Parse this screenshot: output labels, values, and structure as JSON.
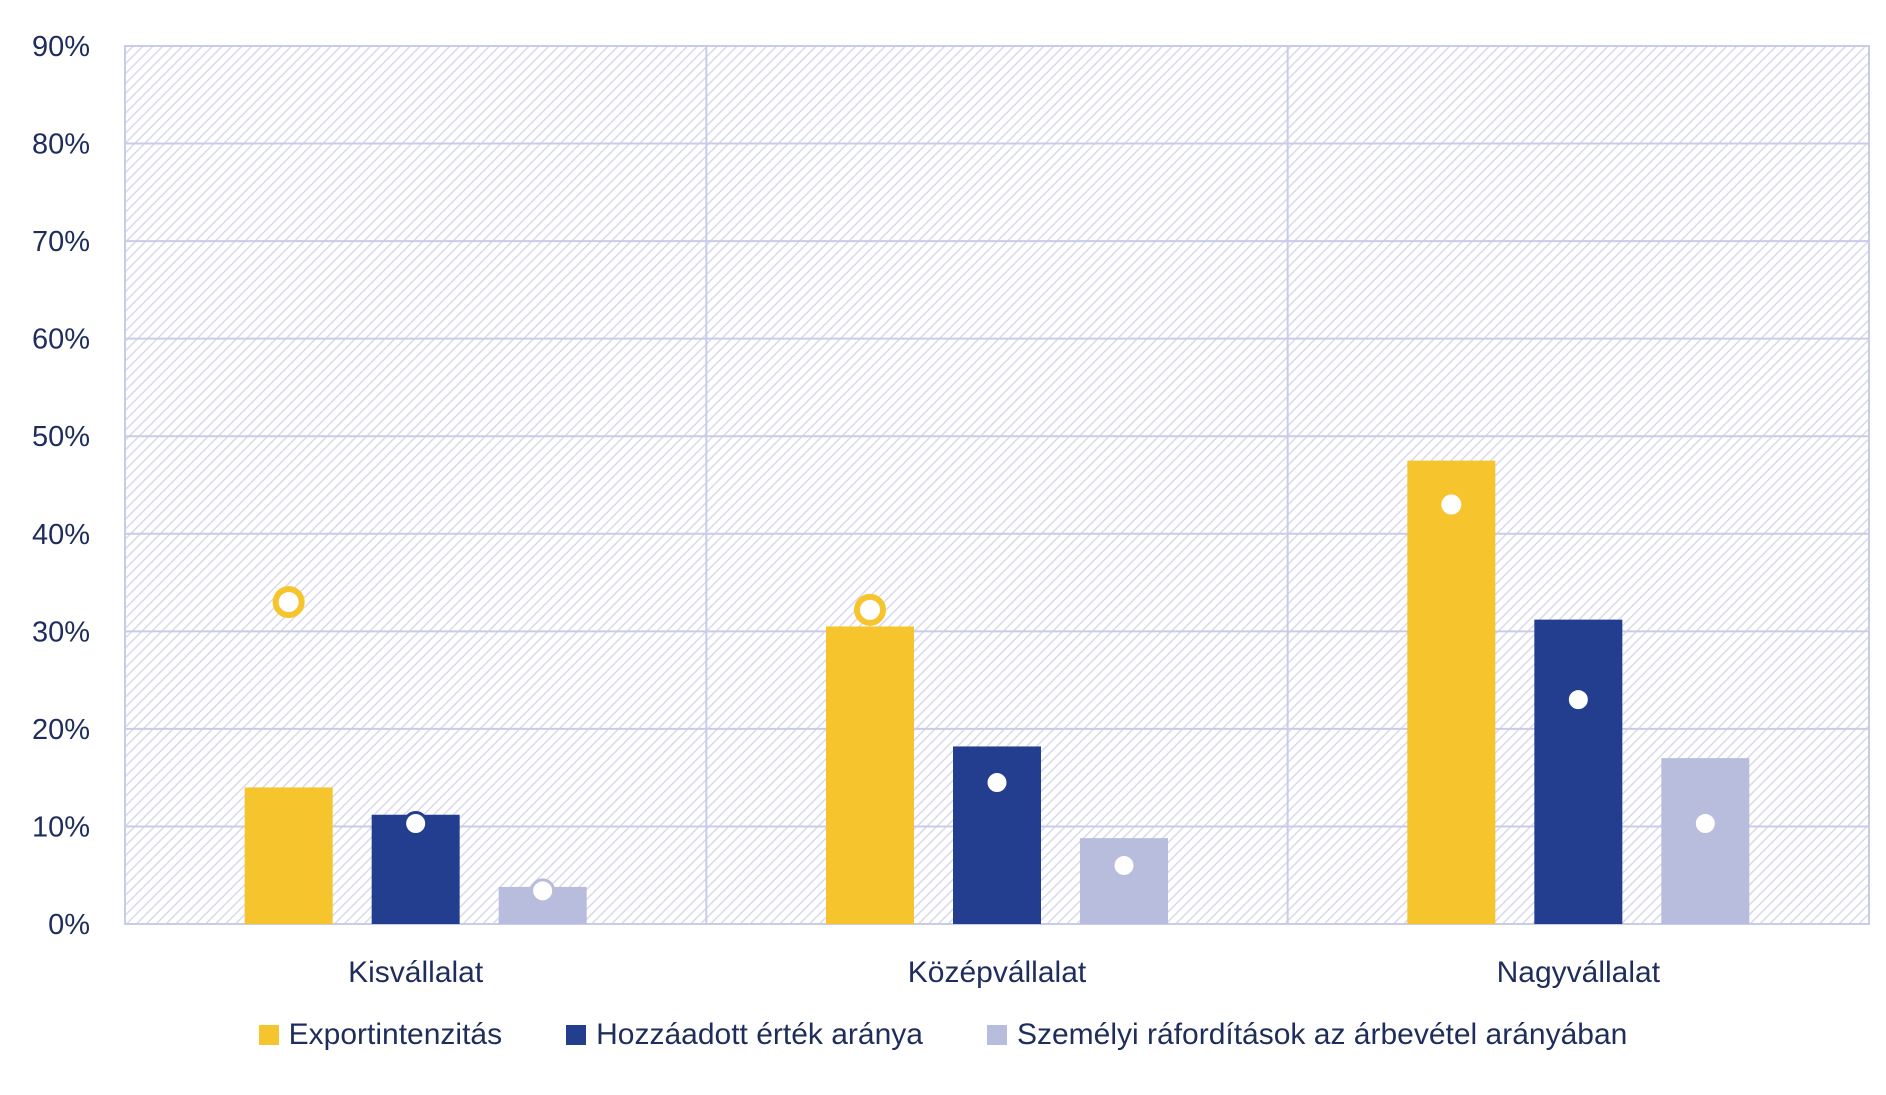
{
  "chart_data": {
    "type": "bar",
    "categories": [
      "Kisvállalat",
      "Középvállalat",
      "Nagyvállalat"
    ],
    "series": [
      {
        "name": "Exportintenzitás",
        "color": "#f6c42c",
        "values": [
          14,
          30.5,
          47.5
        ],
        "markers": [
          33,
          32.2,
          43
        ],
        "marker_style": "ring"
      },
      {
        "name": "Hozzáadott érték aránya",
        "color": "#233e8f",
        "values": [
          11.2,
          18.2,
          31.2
        ],
        "markers": [
          10.3,
          14.5,
          23
        ],
        "marker_style": "dot"
      },
      {
        "name": "Személyi ráfordítások az árbevétel arányában",
        "color": "#b8bcdd",
        "values": [
          3.8,
          8.8,
          17
        ],
        "markers": [
          3.4,
          6,
          10.3
        ],
        "marker_style": "dot"
      }
    ],
    "y_ticks": [
      "0%",
      "10%",
      "20%",
      "30%",
      "40%",
      "50%",
      "60%",
      "70%",
      "80%",
      "90%"
    ],
    "ylim": [
      0,
      90
    ],
    "grid": true,
    "legend_position": "bottom",
    "title": "",
    "xlabel": "",
    "ylabel": ""
  }
}
